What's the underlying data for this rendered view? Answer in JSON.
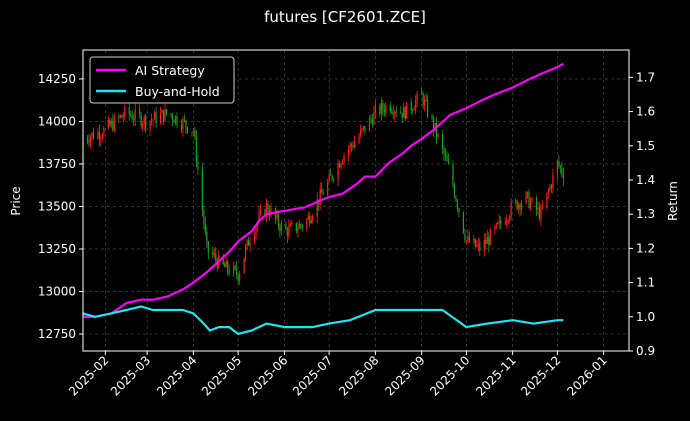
{
  "chart_data": {
    "type": "line",
    "title": "futures [CF2601.ZCE]",
    "ylabel_left": "Price",
    "ylabel_right": "Return",
    "x_ticks": [
      "2025-02",
      "2025-03",
      "2025-04",
      "2025-05",
      "2025-06",
      "2025-07",
      "2025-08",
      "2025-09",
      "2025-10",
      "2025-11",
      "2025-12",
      "2026-01"
    ],
    "x_range": [
      "2025-01-17",
      "2026-01-18"
    ],
    "y_left_ticks": [
      12750,
      13000,
      13250,
      13500,
      13750,
      14000,
      14250
    ],
    "y_left_range": [
      12650,
      14420
    ],
    "y_right_ticks": [
      0.9,
      1.0,
      1.1,
      1.2,
      1.3,
      1.4,
      1.5,
      1.6,
      1.7
    ],
    "y_right_range": [
      0.9,
      1.78
    ],
    "grid": true,
    "legend_position": "top-left",
    "colors": {
      "up": "#ff2020",
      "down": "#1aa51a",
      "ai": "#ff00ff",
      "bh": "#22e5f0",
      "background": "#000000"
    },
    "series": [
      {
        "name": "AI Strategy",
        "axis": "right",
        "x": [
          "2025-01-17",
          "2025-01-25",
          "2025-02-05",
          "2025-02-15",
          "2025-02-25",
          "2025-03-05",
          "2025-03-15",
          "2025-03-25",
          "2025-04-01",
          "2025-04-10",
          "2025-04-15",
          "2025-04-20",
          "2025-04-25",
          "2025-05-01",
          "2025-05-10",
          "2025-05-15",
          "2025-05-20",
          "2025-06-01",
          "2025-06-15",
          "2025-06-25",
          "2025-07-01",
          "2025-07-10",
          "2025-07-20",
          "2025-07-25",
          "2025-08-01",
          "2025-08-10",
          "2025-08-20",
          "2025-08-25",
          "2025-09-01",
          "2025-09-10",
          "2025-09-20",
          "2025-10-01",
          "2025-10-10",
          "2025-10-20",
          "2025-11-01",
          "2025-11-10",
          "2025-11-20",
          "2025-12-01",
          "2025-12-05"
        ],
        "values": [
          1.0,
          1.0,
          1.01,
          1.04,
          1.05,
          1.05,
          1.06,
          1.08,
          1.1,
          1.13,
          1.15,
          1.17,
          1.19,
          1.22,
          1.25,
          1.28,
          1.3,
          1.31,
          1.32,
          1.34,
          1.35,
          1.36,
          1.39,
          1.41,
          1.41,
          1.45,
          1.48,
          1.5,
          1.52,
          1.55,
          1.59,
          1.61,
          1.63,
          1.65,
          1.67,
          1.69,
          1.71,
          1.73,
          1.74
        ]
      },
      {
        "name": "Buy-and-Hold",
        "axis": "right",
        "x": [
          "2025-01-17",
          "2025-01-25",
          "2025-02-05",
          "2025-02-15",
          "2025-02-25",
          "2025-03-05",
          "2025-03-15",
          "2025-03-25",
          "2025-04-01",
          "2025-04-08",
          "2025-04-12",
          "2025-04-18",
          "2025-04-25",
          "2025-05-01",
          "2025-05-10",
          "2025-05-20",
          "2025-06-01",
          "2025-06-10",
          "2025-06-20",
          "2025-07-01",
          "2025-07-15",
          "2025-08-01",
          "2025-08-15",
          "2025-09-01",
          "2025-09-15",
          "2025-10-01",
          "2025-10-15",
          "2025-11-01",
          "2025-11-15",
          "2025-12-01",
          "2025-12-05"
        ],
        "values": [
          1.01,
          1.0,
          1.01,
          1.02,
          1.03,
          1.02,
          1.02,
          1.02,
          1.01,
          0.98,
          0.96,
          0.97,
          0.97,
          0.95,
          0.96,
          0.98,
          0.97,
          0.97,
          0.97,
          0.98,
          0.99,
          1.02,
          1.02,
          1.02,
          1.02,
          0.97,
          0.98,
          0.99,
          0.98,
          0.99,
          0.99
        ]
      },
      {
        "name": "Price",
        "axis": "left",
        "type": "candlestick",
        "x": [
          "2025-01-17",
          "2025-02-01",
          "2025-02-15",
          "2025-03-01",
          "2025-03-15",
          "2025-04-01",
          "2025-04-10",
          "2025-04-20",
          "2025-05-01",
          "2025-05-10",
          "2025-05-20",
          "2025-06-01",
          "2025-06-15",
          "2025-07-01",
          "2025-07-10",
          "2025-07-20",
          "2025-08-01",
          "2025-08-10",
          "2025-08-20",
          "2025-09-01",
          "2025-09-10",
          "2025-09-20",
          "2025-10-01",
          "2025-10-10",
          "2025-10-20",
          "2025-11-01",
          "2025-11-10",
          "2025-11-20",
          "2025-12-01",
          "2025-12-05"
        ],
        "values": [
          13900,
          13950,
          14050,
          14000,
          14050,
          13950,
          13250,
          13150,
          13100,
          13350,
          13500,
          13350,
          13400,
          13650,
          13800,
          13900,
          14050,
          14100,
          14050,
          14150,
          13950,
          13700,
          13300,
          13250,
          13350,
          13500,
          13550,
          13450,
          13750,
          13700
        ]
      }
    ]
  }
}
